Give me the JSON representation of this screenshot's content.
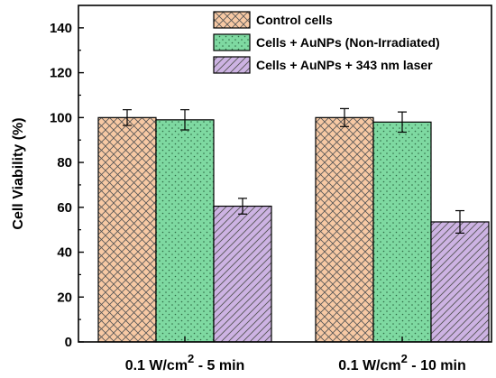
{
  "chart_data": {
    "type": "bar",
    "ylabel": "Cell Viability (%)",
    "ylim": [
      0,
      150
    ],
    "yticks": [
      0,
      20,
      40,
      60,
      80,
      100,
      120,
      140
    ],
    "categories": [
      {
        "main": "0.1 W/cm",
        "sup": "2",
        "suffix": " - 5 min"
      },
      {
        "main": "0.1 W/cm",
        "sup": "2",
        "suffix": " - 10 min"
      }
    ],
    "series": [
      {
        "name": "Control cells",
        "values": [
          100,
          100
        ],
        "errors": [
          3.5,
          4
        ],
        "color": "#f7c9a4",
        "pattern": "crosshatch"
      },
      {
        "name": "Cells + AuNPs (Non-Irradiated)",
        "values": [
          99,
          98
        ],
        "errors": [
          4.5,
          4.5
        ],
        "color": "#7ed9a1",
        "pattern": "dots"
      },
      {
        "name": "Cells + AuNPs + 343 nm laser",
        "values": [
          60.5,
          53.5
        ],
        "errors": [
          3.5,
          5
        ],
        "color": "#cdb3e3",
        "pattern": "diagonal"
      }
    ],
    "legend_position": "top-right",
    "grid": false
  }
}
